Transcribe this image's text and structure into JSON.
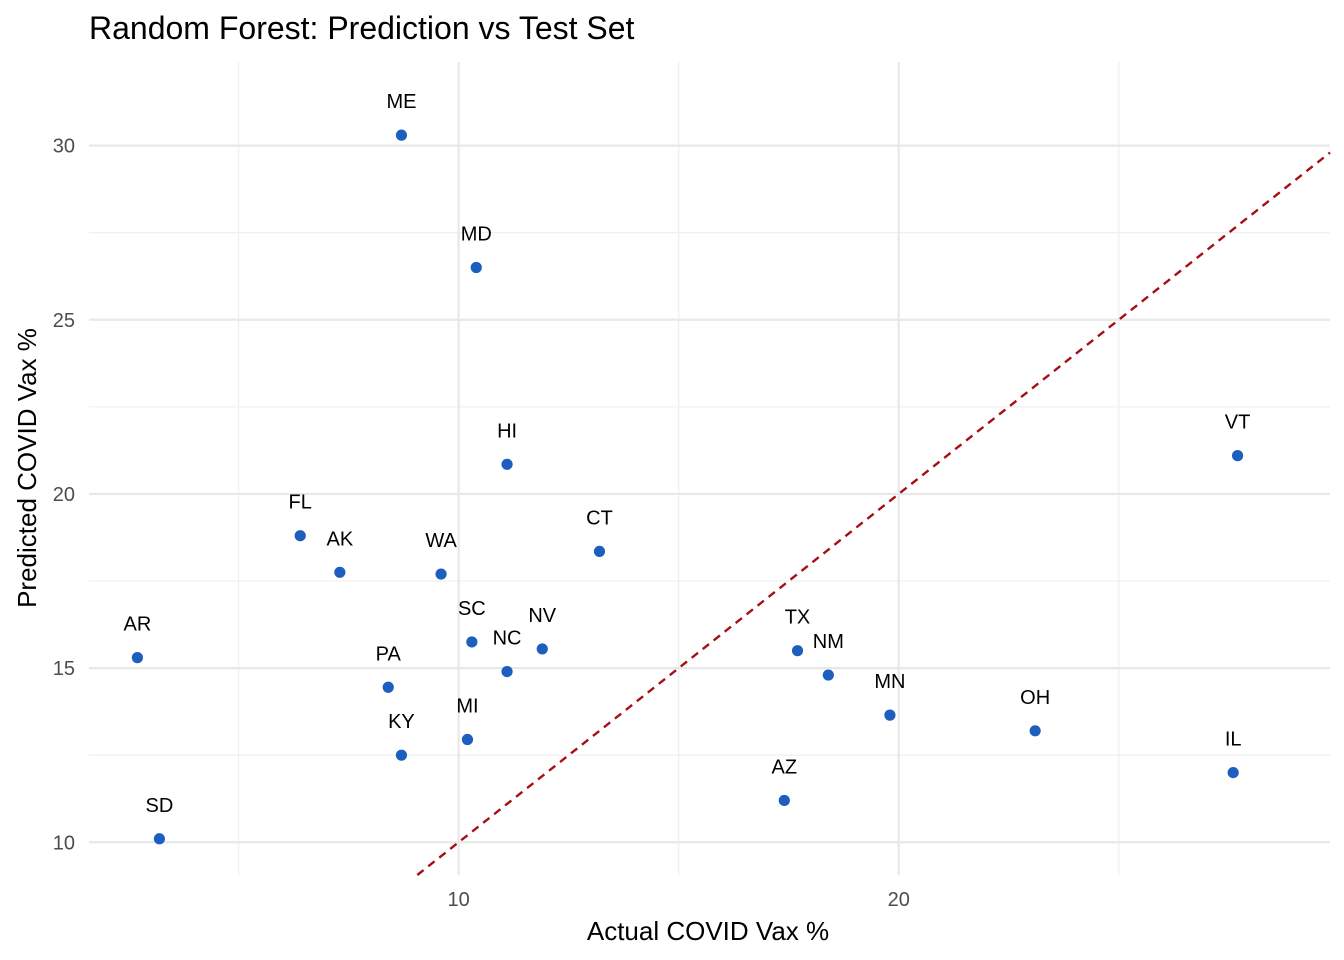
{
  "chart_data": {
    "type": "scatter",
    "title": "Random Forest: Prediction vs Test Set",
    "xlabel": "Actual COVID Vax %",
    "ylabel": "Predicted COVID Vax %",
    "xlim": [
      1.6,
      29.8
    ],
    "ylim": [
      9.06,
      32.4
    ],
    "x_ticks": [
      10,
      20
    ],
    "x_minor_ticks": [
      5,
      15,
      25
    ],
    "y_ticks": [
      10,
      15,
      20,
      25,
      30
    ],
    "y_minor_ticks": [
      12.5,
      17.5,
      22.5,
      27.5
    ],
    "grid": true,
    "reference_line": {
      "slope": 1,
      "intercept": 0,
      "style": "dashed",
      "color": "#A50F15"
    },
    "point_color": "#1C5FBF",
    "points": [
      {
        "label": "ME",
        "x": 8.7,
        "y": 30.3
      },
      {
        "label": "MD",
        "x": 10.4,
        "y": 26.5
      },
      {
        "label": "HI",
        "x": 11.1,
        "y": 20.85
      },
      {
        "label": "VT",
        "x": 27.7,
        "y": 21.1
      },
      {
        "label": "FL",
        "x": 6.4,
        "y": 18.8
      },
      {
        "label": "AK",
        "x": 7.3,
        "y": 17.75
      },
      {
        "label": "WA",
        "x": 9.6,
        "y": 17.7
      },
      {
        "label": "CT",
        "x": 13.2,
        "y": 18.35
      },
      {
        "label": "AR",
        "x": 2.7,
        "y": 15.3
      },
      {
        "label": "SC",
        "x": 10.3,
        "y": 15.75
      },
      {
        "label": "NV",
        "x": 11.9,
        "y": 15.55
      },
      {
        "label": "NC",
        "x": 11.1,
        "y": 14.9
      },
      {
        "label": "PA",
        "x": 8.4,
        "y": 14.45
      },
      {
        "label": "TX",
        "x": 17.7,
        "y": 15.5
      },
      {
        "label": "NM",
        "x": 18.4,
        "y": 14.8
      },
      {
        "label": "MN",
        "x": 19.8,
        "y": 13.65
      },
      {
        "label": "OH",
        "x": 23.1,
        "y": 13.2
      },
      {
        "label": "KY",
        "x": 8.7,
        "y": 12.5
      },
      {
        "label": "MI",
        "x": 10.2,
        "y": 12.95
      },
      {
        "label": "IL",
        "x": 27.6,
        "y": 12.0
      },
      {
        "label": "AZ",
        "x": 17.4,
        "y": 11.2
      },
      {
        "label": "SD",
        "x": 3.2,
        "y": 10.1
      }
    ]
  }
}
